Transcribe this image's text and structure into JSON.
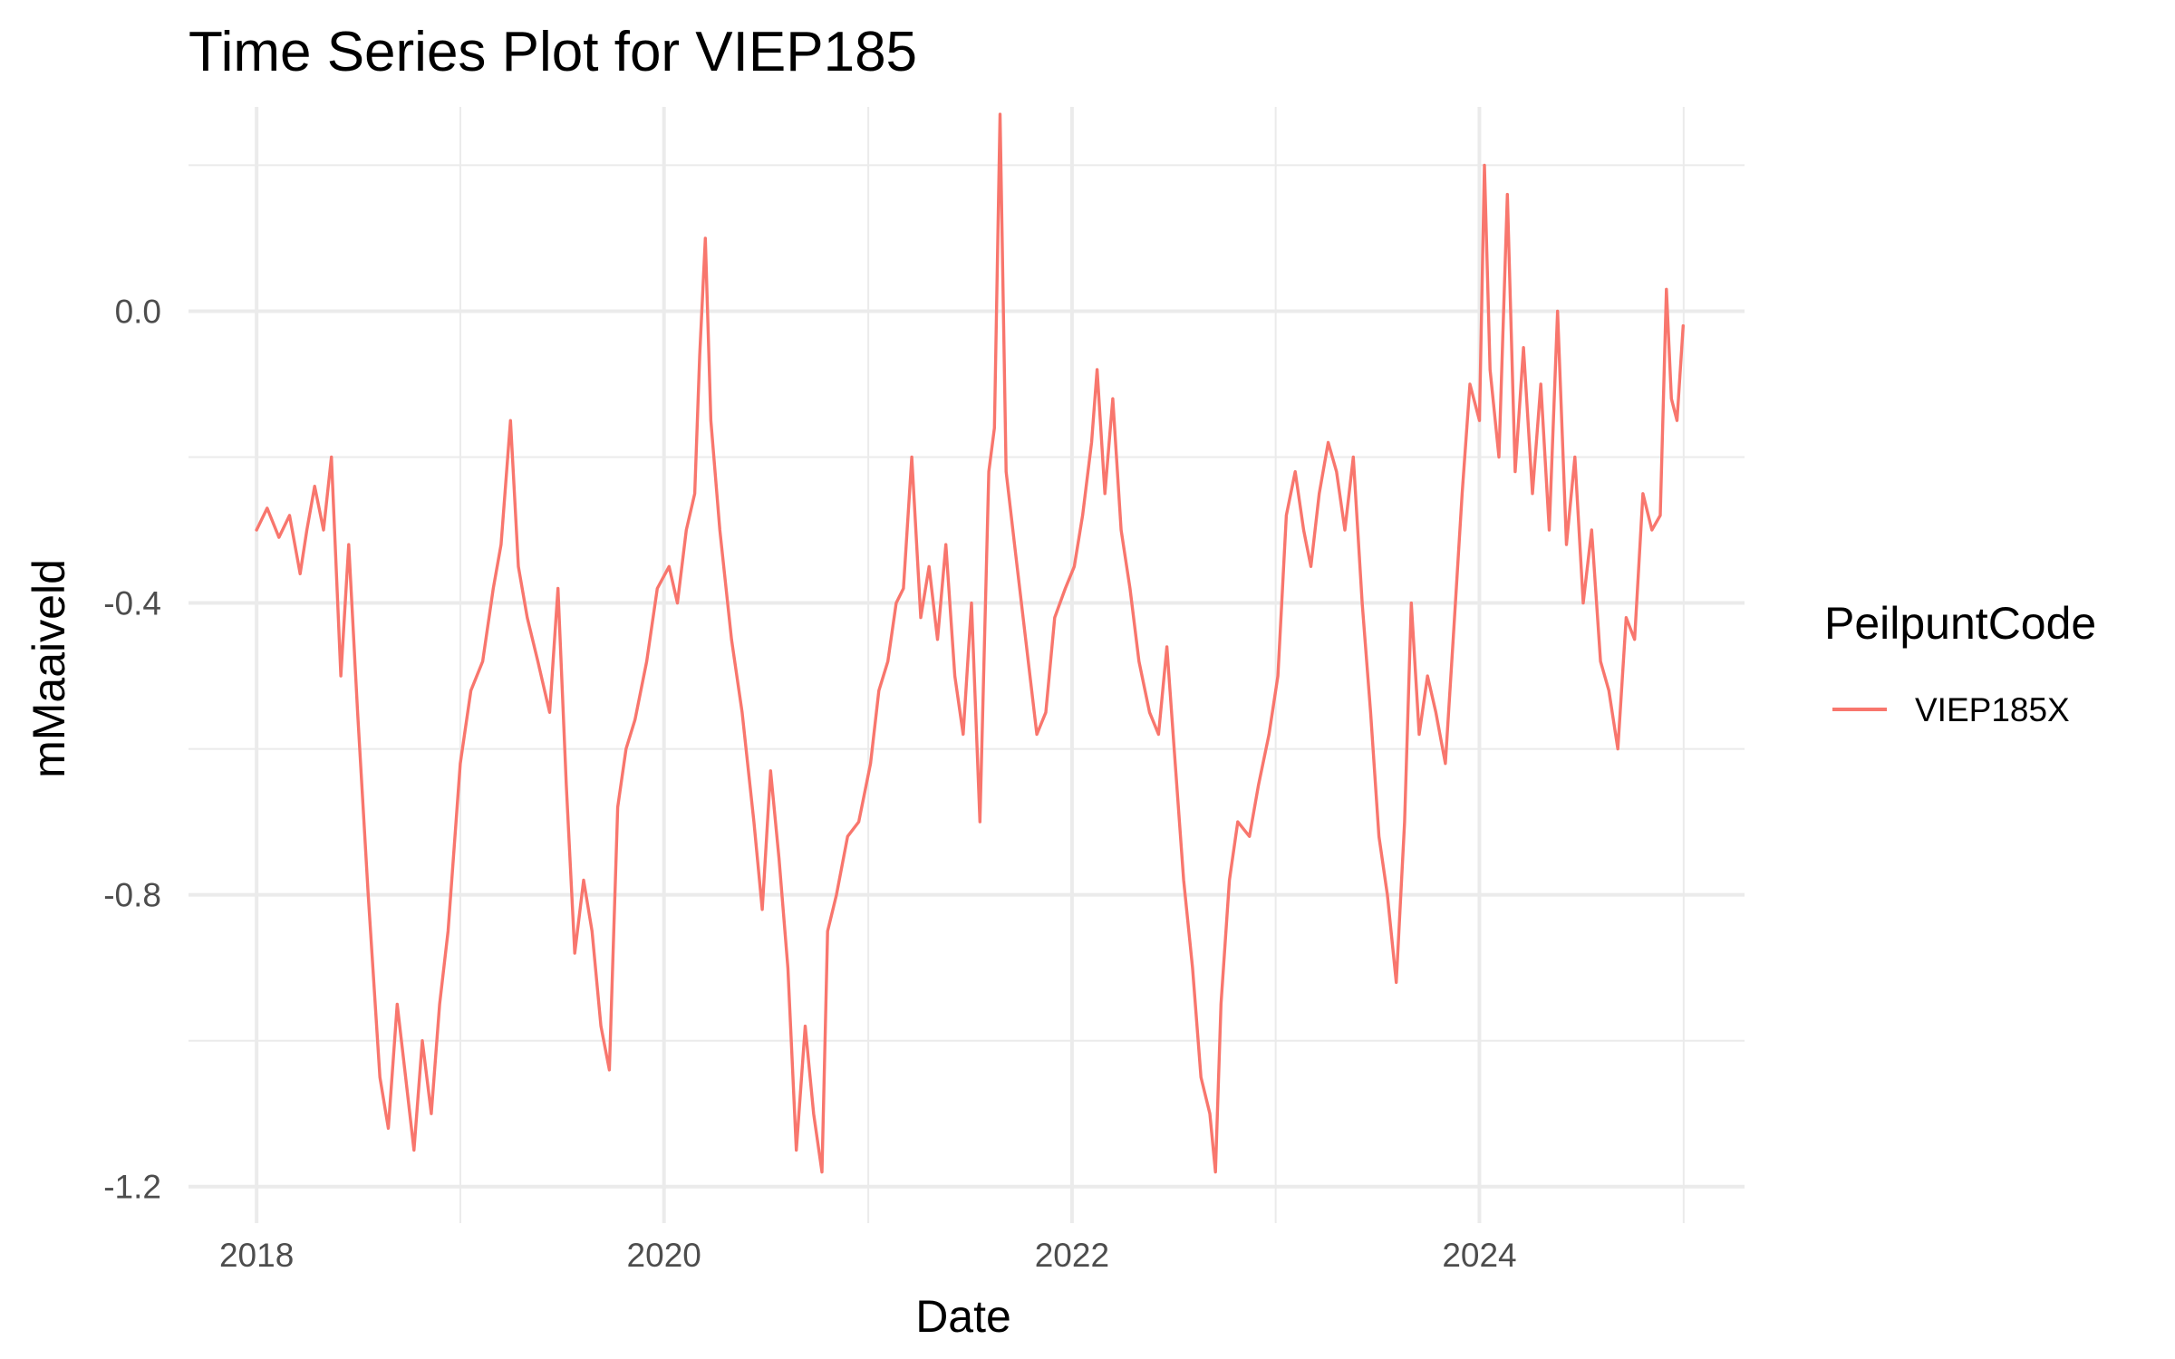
{
  "chart_data": {
    "type": "line",
    "title": "Time Series Plot for VIEP185",
    "xlabel": "Date",
    "ylabel": "mMaaiveld",
    "x_ticks": [
      "2018",
      "2020",
      "2022",
      "2024"
    ],
    "y_ticks": [
      "0.0",
      "-0.4",
      "-0.8",
      "-1.2"
    ],
    "xlim": [
      "2017-09-01",
      "2025-04-20"
    ],
    "ylim": [
      -1.25,
      0.28
    ],
    "grid": true,
    "legend": {
      "title": "PeilpuntCode",
      "placement": "right"
    },
    "series": [
      {
        "name": "VIEP185X",
        "color": "#F8766D",
        "points": [
          [
            "2018-01-01",
            -0.3
          ],
          [
            "2018-01-20",
            -0.27
          ],
          [
            "2018-02-10",
            -0.31
          ],
          [
            "2018-03-01",
            -0.28
          ],
          [
            "2018-03-20",
            -0.36
          ],
          [
            "2018-04-01",
            -0.3
          ],
          [
            "2018-04-15",
            -0.24
          ],
          [
            "2018-05-01",
            -0.3
          ],
          [
            "2018-05-15",
            -0.2
          ],
          [
            "2018-06-01",
            -0.5
          ],
          [
            "2018-06-15",
            -0.32
          ],
          [
            "2018-07-01",
            -0.55
          ],
          [
            "2018-07-20",
            -0.8
          ],
          [
            "2018-08-10",
            -1.05
          ],
          [
            "2018-08-25",
            -1.12
          ],
          [
            "2018-09-10",
            -0.95
          ],
          [
            "2018-09-25",
            -1.05
          ],
          [
            "2018-10-10",
            -1.15
          ],
          [
            "2018-10-25",
            -1.0
          ],
          [
            "2018-11-10",
            -1.1
          ],
          [
            "2018-11-25",
            -0.95
          ],
          [
            "2018-12-10",
            -0.85
          ],
          [
            "2019-01-01",
            -0.62
          ],
          [
            "2019-01-20",
            -0.52
          ],
          [
            "2019-02-10",
            -0.48
          ],
          [
            "2019-03-01",
            -0.38
          ],
          [
            "2019-03-15",
            -0.32
          ],
          [
            "2019-04-01",
            -0.15
          ],
          [
            "2019-04-15",
            -0.35
          ],
          [
            "2019-05-01",
            -0.42
          ],
          [
            "2019-05-20",
            -0.48
          ],
          [
            "2019-06-10",
            -0.55
          ],
          [
            "2019-06-25",
            -0.38
          ],
          [
            "2019-07-10",
            -0.65
          ],
          [
            "2019-07-25",
            -0.88
          ],
          [
            "2019-08-10",
            -0.78
          ],
          [
            "2019-08-25",
            -0.85
          ],
          [
            "2019-09-10",
            -0.98
          ],
          [
            "2019-09-25",
            -1.04
          ],
          [
            "2019-10-10",
            -0.68
          ],
          [
            "2019-10-25",
            -0.6
          ],
          [
            "2019-11-10",
            -0.56
          ],
          [
            "2019-12-01",
            -0.48
          ],
          [
            "2019-12-20",
            -0.38
          ],
          [
            "2020-01-10",
            -0.35
          ],
          [
            "2020-01-25",
            -0.4
          ],
          [
            "2020-02-10",
            -0.3
          ],
          [
            "2020-02-25",
            -0.25
          ],
          [
            "2020-03-05",
            -0.06
          ],
          [
            "2020-03-15",
            0.1
          ],
          [
            "2020-03-25",
            -0.15
          ],
          [
            "2020-04-10",
            -0.3
          ],
          [
            "2020-05-01",
            -0.45
          ],
          [
            "2020-05-20",
            -0.55
          ],
          [
            "2020-06-10",
            -0.7
          ],
          [
            "2020-06-25",
            -0.82
          ],
          [
            "2020-07-10",
            -0.63
          ],
          [
            "2020-07-25",
            -0.75
          ],
          [
            "2020-08-10",
            -0.9
          ],
          [
            "2020-08-25",
            -1.15
          ],
          [
            "2020-09-10",
            -0.98
          ],
          [
            "2020-09-25",
            -1.1
          ],
          [
            "2020-10-10",
            -1.18
          ],
          [
            "2020-10-20",
            -0.85
          ],
          [
            "2020-11-05",
            -0.8
          ],
          [
            "2020-11-25",
            -0.72
          ],
          [
            "2020-12-15",
            -0.7
          ],
          [
            "2021-01-05",
            -0.62
          ],
          [
            "2021-01-20",
            -0.52
          ],
          [
            "2021-02-05",
            -0.48
          ],
          [
            "2021-02-20",
            -0.4
          ],
          [
            "2021-03-05",
            -0.38
          ],
          [
            "2021-03-20",
            -0.2
          ],
          [
            "2021-04-05",
            -0.42
          ],
          [
            "2021-04-20",
            -0.35
          ],
          [
            "2021-05-05",
            -0.45
          ],
          [
            "2021-05-20",
            -0.32
          ],
          [
            "2021-06-05",
            -0.5
          ],
          [
            "2021-06-20",
            -0.58
          ],
          [
            "2021-07-05",
            -0.4
          ],
          [
            "2021-07-20",
            -0.7
          ],
          [
            "2021-08-05",
            -0.22
          ],
          [
            "2021-08-15",
            -0.16
          ],
          [
            "2021-08-25",
            0.27
          ],
          [
            "2021-09-05",
            -0.22
          ],
          [
            "2021-09-20",
            -0.32
          ],
          [
            "2021-10-10",
            -0.45
          ],
          [
            "2021-10-30",
            -0.58
          ],
          [
            "2021-11-15",
            -0.55
          ],
          [
            "2021-12-01",
            -0.42
          ],
          [
            "2021-12-20",
            -0.38
          ],
          [
            "2022-01-05",
            -0.35
          ],
          [
            "2022-01-20",
            -0.28
          ],
          [
            "2022-02-05",
            -0.18
          ],
          [
            "2022-02-15",
            -0.08
          ],
          [
            "2022-03-01",
            -0.25
          ],
          [
            "2022-03-15",
            -0.12
          ],
          [
            "2022-03-30",
            -0.3
          ],
          [
            "2022-04-15",
            -0.38
          ],
          [
            "2022-05-01",
            -0.48
          ],
          [
            "2022-05-20",
            -0.55
          ],
          [
            "2022-06-05",
            -0.58
          ],
          [
            "2022-06-20",
            -0.46
          ],
          [
            "2022-07-05",
            -0.62
          ],
          [
            "2022-07-20",
            -0.78
          ],
          [
            "2022-08-05",
            -0.9
          ],
          [
            "2022-08-20",
            -1.05
          ],
          [
            "2022-09-05",
            -1.1
          ],
          [
            "2022-09-15",
            -1.18
          ],
          [
            "2022-09-25",
            -0.95
          ],
          [
            "2022-10-10",
            -0.78
          ],
          [
            "2022-10-25",
            -0.7
          ],
          [
            "2022-11-15",
            -0.72
          ],
          [
            "2022-12-01",
            -0.65
          ],
          [
            "2022-12-20",
            -0.58
          ],
          [
            "2023-01-05",
            -0.5
          ],
          [
            "2023-01-20",
            -0.28
          ],
          [
            "2023-02-05",
            -0.22
          ],
          [
            "2023-02-20",
            -0.3
          ],
          [
            "2023-03-05",
            -0.35
          ],
          [
            "2023-03-20",
            -0.25
          ],
          [
            "2023-04-05",
            -0.18
          ],
          [
            "2023-04-20",
            -0.22
          ],
          [
            "2023-05-05",
            -0.3
          ],
          [
            "2023-05-20",
            -0.2
          ],
          [
            "2023-06-05",
            -0.4
          ],
          [
            "2023-06-20",
            -0.55
          ],
          [
            "2023-07-05",
            -0.72
          ],
          [
            "2023-07-20",
            -0.8
          ],
          [
            "2023-08-05",
            -0.92
          ],
          [
            "2023-08-20",
            -0.7
          ],
          [
            "2023-09-01",
            -0.4
          ],
          [
            "2023-09-15",
            -0.58
          ],
          [
            "2023-09-30",
            -0.5
          ],
          [
            "2023-10-15",
            -0.55
          ],
          [
            "2023-11-01",
            -0.62
          ],
          [
            "2023-11-15",
            -0.45
          ],
          [
            "2023-12-01",
            -0.25
          ],
          [
            "2023-12-15",
            -0.1
          ],
          [
            "2024-01-01",
            -0.15
          ],
          [
            "2024-01-10",
            0.2
          ],
          [
            "2024-01-20",
            -0.08
          ],
          [
            "2024-02-05",
            -0.2
          ],
          [
            "2024-02-20",
            0.16
          ],
          [
            "2024-03-05",
            -0.22
          ],
          [
            "2024-03-20",
            -0.05
          ],
          [
            "2024-04-05",
            -0.25
          ],
          [
            "2024-04-20",
            -0.1
          ],
          [
            "2024-05-05",
            -0.3
          ],
          [
            "2024-05-20",
            0.0
          ],
          [
            "2024-06-05",
            -0.32
          ],
          [
            "2024-06-20",
            -0.2
          ],
          [
            "2024-07-05",
            -0.4
          ],
          [
            "2024-07-20",
            -0.3
          ],
          [
            "2024-08-05",
            -0.48
          ],
          [
            "2024-08-20",
            -0.52
          ],
          [
            "2024-09-05",
            -0.6
          ],
          [
            "2024-09-20",
            -0.42
          ],
          [
            "2024-10-05",
            -0.45
          ],
          [
            "2024-10-20",
            -0.25
          ],
          [
            "2024-11-05",
            -0.3
          ],
          [
            "2024-11-20",
            -0.28
          ],
          [
            "2024-12-01",
            0.03
          ],
          [
            "2024-12-10",
            -0.12
          ],
          [
            "2024-12-20",
            -0.15
          ],
          [
            "2024-12-31",
            -0.02
          ]
        ]
      }
    ]
  }
}
